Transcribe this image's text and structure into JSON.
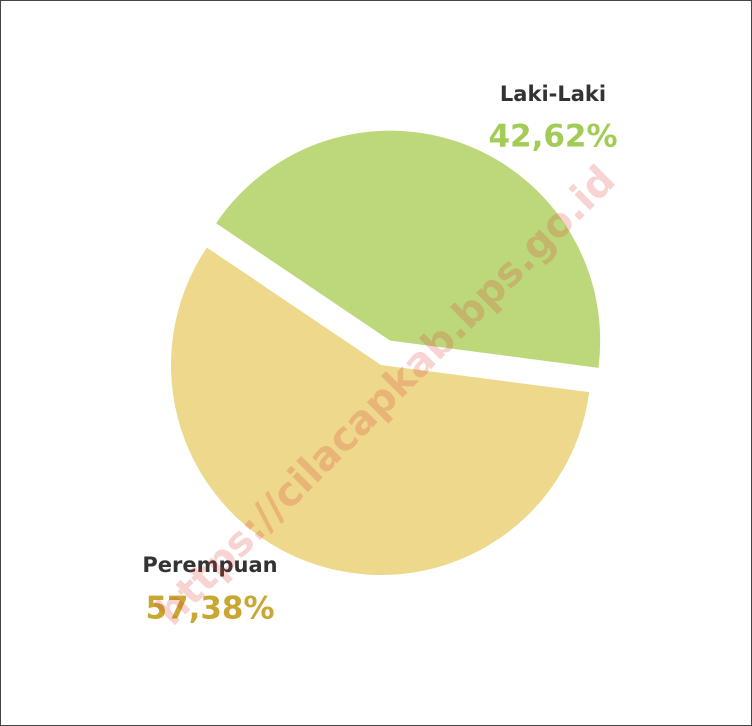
{
  "chart_data": {
    "type": "pie",
    "categories": [
      "Laki-Laki",
      "Perempuan"
    ],
    "values": [
      42.62,
      57.38
    ],
    "value_labels": [
      "42,62%",
      "57,38%"
    ],
    "colors": [
      "#bdd87a",
      "#edd88b"
    ],
    "label_colors": [
      "#a3cc57",
      "#c8a833"
    ]
  },
  "watermark": "https://cilacapkab.bps.go.id"
}
